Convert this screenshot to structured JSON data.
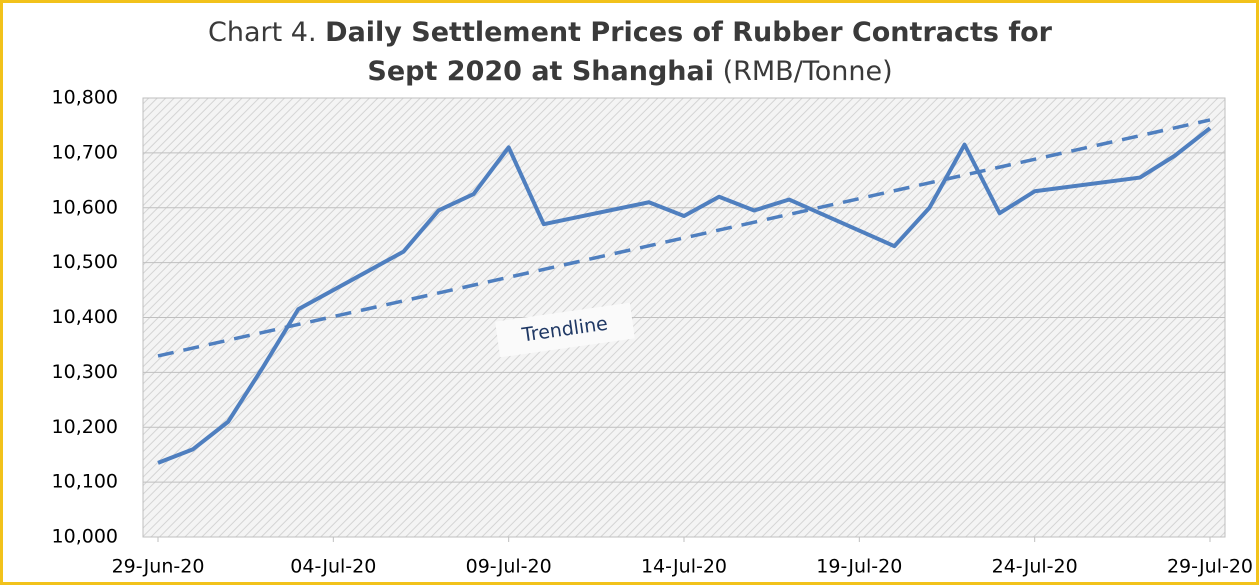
{
  "chart_data": {
    "type": "line",
    "title_parts": [
      "Chart 4.",
      "Daily Settlement Prices of Rubber Contracts for",
      "Sept 2020 at Shanghai",
      "(RMB/Tonne)"
    ],
    "x": [
      "2020-06-29",
      "2020-06-30",
      "2020-07-01",
      "2020-07-02",
      "2020-07-03",
      "2020-07-06",
      "2020-07-07",
      "2020-07-08",
      "2020-07-09",
      "2020-07-10",
      "2020-07-13",
      "2020-07-14",
      "2020-07-15",
      "2020-07-16",
      "2020-07-17",
      "2020-07-20",
      "2020-07-21",
      "2020-07-22",
      "2020-07-23",
      "2020-07-24",
      "2020-07-27",
      "2020-07-28",
      "2020-07-29"
    ],
    "series": [
      {
        "color": "#4f7fbf",
        "values": [
          10135,
          10160,
          10210,
          10310,
          10415,
          10520,
          10595,
          10625,
          10710,
          10570,
          10610,
          10585,
          10620,
          10595,
          10615,
          10530,
          10600,
          10715,
          10590,
          10630,
          10655,
          10695,
          10745
        ]
      }
    ],
    "trendline": {
      "label": "Trendline",
      "color": "#4f7fbf",
      "x": [
        "2020-06-29",
        "2020-07-29"
      ],
      "values": [
        10330,
        10760
      ]
    },
    "xlim": [
      "2020-06-29",
      "2020-07-29"
    ],
    "xticks": [
      {
        "value": "2020-06-29",
        "label": "29-Jun-20"
      },
      {
        "value": "2020-07-04",
        "label": "04-Jul-20"
      },
      {
        "value": "2020-07-09",
        "label": "09-Jul-20"
      },
      {
        "value": "2020-07-14",
        "label": "14-Jul-20"
      },
      {
        "value": "2020-07-19",
        "label": "19-Jul-20"
      },
      {
        "value": "2020-07-24",
        "label": "24-Jul-20"
      },
      {
        "value": "2020-07-29",
        "label": "29-Jul-20"
      }
    ],
    "ylim": [
      10000,
      10800
    ],
    "yticks": [
      {
        "value": 10000,
        "label": "10,000"
      },
      {
        "value": 10100,
        "label": "10,100"
      },
      {
        "value": 10200,
        "label": "10,200"
      },
      {
        "value": 10300,
        "label": "10,300"
      },
      {
        "value": 10400,
        "label": "10,400"
      },
      {
        "value": 10500,
        "label": "10,500"
      },
      {
        "value": 10600,
        "label": "10,600"
      },
      {
        "value": 10700,
        "label": "10,700"
      },
      {
        "value": 10800,
        "label": "10,800"
      }
    ],
    "grid": true
  }
}
